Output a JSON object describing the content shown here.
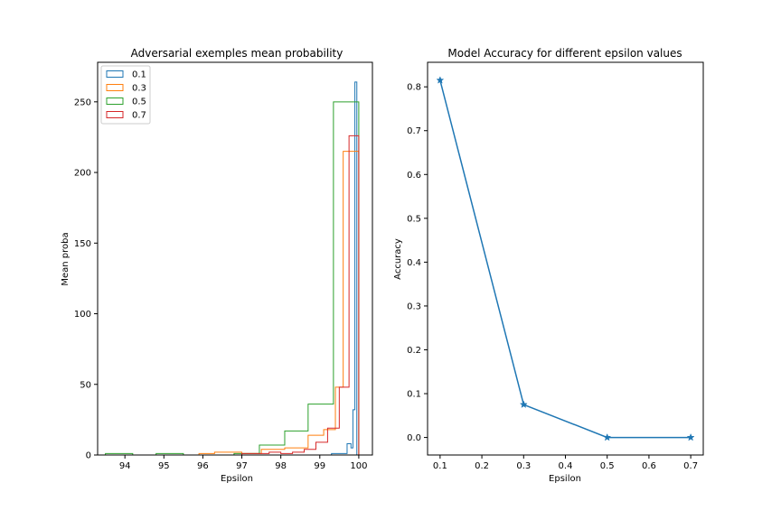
{
  "chart_data": [
    {
      "type": "histogram-step",
      "title": "Adversarial exemples mean probability",
      "xlabel": "Epsilon",
      "ylabel": "Mean proba",
      "xlim": [
        93.3,
        100.35
      ],
      "ylim": [
        0,
        278
      ],
      "xticks": [
        94,
        95,
        96,
        97,
        98,
        99,
        100
      ],
      "yticks": [
        0,
        50,
        100,
        150,
        200,
        250
      ],
      "legend_position": "upper-left",
      "series": [
        {
          "name": "0.1",
          "color": "#1f77b4",
          "edges": [
            99.3,
            99.5,
            99.7,
            99.8,
            99.85,
            99.9,
            99.95,
            100.0
          ],
          "counts": [
            1,
            1,
            8,
            5,
            32,
            264,
            0
          ]
        },
        {
          "name": "0.3",
          "color": "#ff7f0e",
          "edges": [
            95.9,
            96.3,
            97.0,
            97.5,
            98.1,
            98.7,
            99.1,
            99.4,
            99.6,
            100.0
          ],
          "counts": [
            1,
            2,
            1,
            4,
            5,
            14,
            18,
            48,
            215
          ]
        },
        {
          "name": "0.5",
          "color": "#2ca02c",
          "edges": [
            93.5,
            94.2,
            94.8,
            95.5,
            96.8,
            97.45,
            98.1,
            98.7,
            99.35,
            100.0
          ],
          "counts": [
            1,
            0,
            1,
            0,
            1,
            7,
            17,
            36,
            250
          ]
        },
        {
          "name": "0.7",
          "color": "#d62728",
          "edges": [
            97.0,
            97.4,
            97.7,
            98.0,
            98.3,
            98.6,
            98.9,
            99.2,
            99.5,
            99.75,
            100.0
          ],
          "counts": [
            1,
            1,
            2,
            1,
            2,
            4,
            9,
            19,
            48,
            226
          ]
        }
      ]
    },
    {
      "type": "line",
      "title": "Model Accuracy for different epsilon values",
      "xlabel": "Epsilon",
      "ylabel": "Accuracy",
      "xlim": [
        0.07,
        0.73
      ],
      "ylim": [
        -0.04,
        0.856
      ],
      "xticks": [
        0.1,
        0.2,
        0.3,
        0.4,
        0.5,
        0.6,
        0.7
      ],
      "yticks": [
        0.0,
        0.1,
        0.2,
        0.3,
        0.4,
        0.5,
        0.6,
        0.7,
        0.8
      ],
      "marker": "star",
      "series": [
        {
          "color": "#1f77b4",
          "x": [
            0.1,
            0.3,
            0.5,
            0.7
          ],
          "y": [
            0.815,
            0.075,
            0.0,
            0.0
          ]
        }
      ]
    }
  ]
}
